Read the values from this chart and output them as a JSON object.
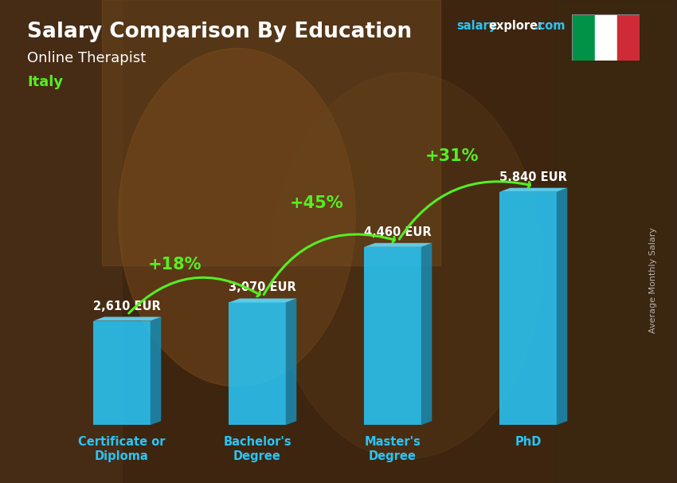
{
  "title": "Salary Comparison By Education",
  "subtitle1": "Online Therapist",
  "subtitle2": "Italy",
  "ylabel": "Average Monthly Salary",
  "categories": [
    "Certificate or\nDiploma",
    "Bachelor's\nDegree",
    "Master's\nDegree",
    "PhD"
  ],
  "values": [
    2610,
    3070,
    4460,
    5840
  ],
  "value_labels": [
    "2,610 EUR",
    "3,070 EUR",
    "4,460 EUR",
    "5,840 EUR"
  ],
  "pct_labels": [
    "+18%",
    "+45%",
    "+31%"
  ],
  "bar_color_face": "#29c5f6",
  "bar_color_right": "#1a8ab0",
  "bar_color_top": "#60d8f8",
  "background_color": "#3d2510",
  "title_color": "#ffffff",
  "subtitle1_color": "#ffffff",
  "subtitle2_color": "#55ee22",
  "value_label_color": "#ffffff",
  "pct_color": "#55ee22",
  "xlabel_color": "#29c5f6",
  "ylabel_color": "#cccccc",
  "brand_salary_color": "#29c5f6",
  "brand_explorer_color": "#ffffff",
  "brand_com_color": "#29c5f6",
  "ylim": [
    0,
    7500
  ],
  "xlim": [
    -0.65,
    3.75
  ],
  "figsize": [
    8.5,
    6.06
  ],
  "dpi": 100,
  "bar_width": 0.42,
  "dx3d": 0.08,
  "dy3d": 200
}
